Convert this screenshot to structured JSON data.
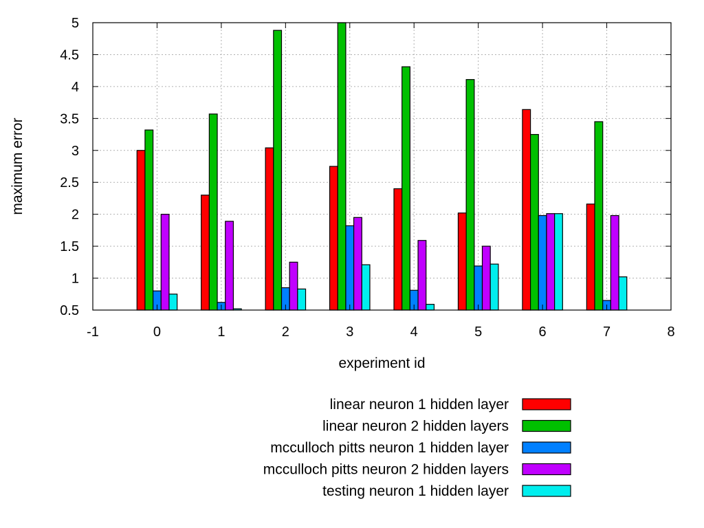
{
  "chart_data": {
    "type": "bar",
    "xlabel": "experiment id",
    "ylabel": "maximum error",
    "xlim": [
      -1,
      8
    ],
    "ylim": [
      0.5,
      5
    ],
    "xticks": [
      "-1",
      "0",
      "1",
      "2",
      "3",
      "4",
      "5",
      "6",
      "7",
      "8"
    ],
    "yticks": [
      "0.5",
      "1",
      "1.5",
      "2",
      "2.5",
      "3",
      "3.5",
      "4",
      "4.5",
      "5"
    ],
    "categories": [
      0,
      1,
      2,
      3,
      4,
      5,
      6,
      7
    ],
    "grid": true,
    "legend_position": "bottom-right-below-plot",
    "series": [
      {
        "name": "linear neuron 1 hidden layer",
        "color": "#ff0000",
        "values": [
          3.0,
          2.3,
          3.04,
          2.75,
          2.4,
          2.02,
          3.64,
          2.16
        ]
      },
      {
        "name": "linear neuron 2 hidden layers",
        "color": "#00c000",
        "values": [
          3.32,
          3.57,
          4.88,
          5.0,
          4.31,
          4.11,
          3.25,
          3.45
        ]
      },
      {
        "name": "mcculloch pitts neuron 1 hidden layer",
        "color": "#0080ff",
        "values": [
          0.8,
          0.62,
          0.85,
          1.82,
          0.81,
          1.19,
          1.98,
          0.65
        ]
      },
      {
        "name": "mcculloch pitts neuron 2 hidden layers",
        "color": "#c000ff",
        "values": [
          2.0,
          1.89,
          1.25,
          1.95,
          1.59,
          1.5,
          2.01,
          1.98
        ]
      },
      {
        "name": "testing neuron 1 hidden layer",
        "color": "#00eeee",
        "values": [
          0.75,
          0.52,
          0.83,
          1.21,
          0.59,
          1.22,
          2.01,
          1.02
        ]
      }
    ]
  }
}
